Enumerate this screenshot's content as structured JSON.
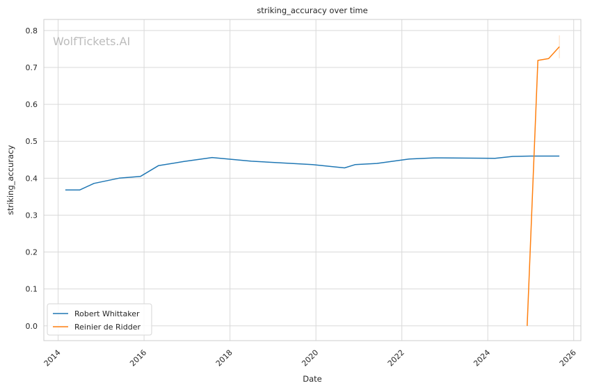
{
  "chart_data": {
    "type": "line",
    "title": "striking_accuracy over time",
    "xlabel": "Date",
    "ylabel": "striking_accuracy",
    "watermark": "WolfTickets.AI",
    "xlim": [
      "2013-09-01",
      "2026-03-01"
    ],
    "ylim": [
      -0.04,
      0.83
    ],
    "x_ticks": [
      "2014",
      "2016",
      "2018",
      "2020",
      "2022",
      "2024",
      "2026"
    ],
    "y_ticks": [
      "0.0",
      "0.1",
      "0.2",
      "0.3",
      "0.4",
      "0.5",
      "0.6",
      "0.7",
      "0.8"
    ],
    "grid": true,
    "legend_position": "lower-left",
    "series": [
      {
        "name": "Robert Whittaker",
        "color": "#1f77b4",
        "points": [
          [
            "2014-03-01",
            0.368
          ],
          [
            "2014-07-01",
            0.368
          ],
          [
            "2014-11-01",
            0.386
          ],
          [
            "2015-06-01",
            0.4
          ],
          [
            "2015-12-01",
            0.405
          ],
          [
            "2016-05-01",
            0.434
          ],
          [
            "2016-12-01",
            0.445
          ],
          [
            "2017-08-01",
            0.456
          ],
          [
            "2018-07-01",
            0.446
          ],
          [
            "2019-12-01",
            0.437
          ],
          [
            "2020-09-01",
            0.428
          ],
          [
            "2020-12-01",
            0.437
          ],
          [
            "2021-06-01",
            0.44
          ],
          [
            "2022-03-01",
            0.452
          ],
          [
            "2022-10-01",
            0.455
          ],
          [
            "2024-03-01",
            0.454
          ],
          [
            "2024-08-01",
            0.459
          ],
          [
            "2025-01-01",
            0.46
          ],
          [
            "2025-09-01",
            0.46
          ]
        ]
      },
      {
        "name": "Reinier de Ridder",
        "color": "#ff7f0e",
        "points": [
          [
            "2024-12-01",
            0.0
          ],
          [
            "2025-03-01",
            0.719
          ],
          [
            "2025-06-01",
            0.724
          ],
          [
            "2025-09-01",
            0.756
          ]
        ],
        "band": [
          [
            "2025-09-01",
            0.725,
            0.787
          ]
        ]
      }
    ]
  }
}
